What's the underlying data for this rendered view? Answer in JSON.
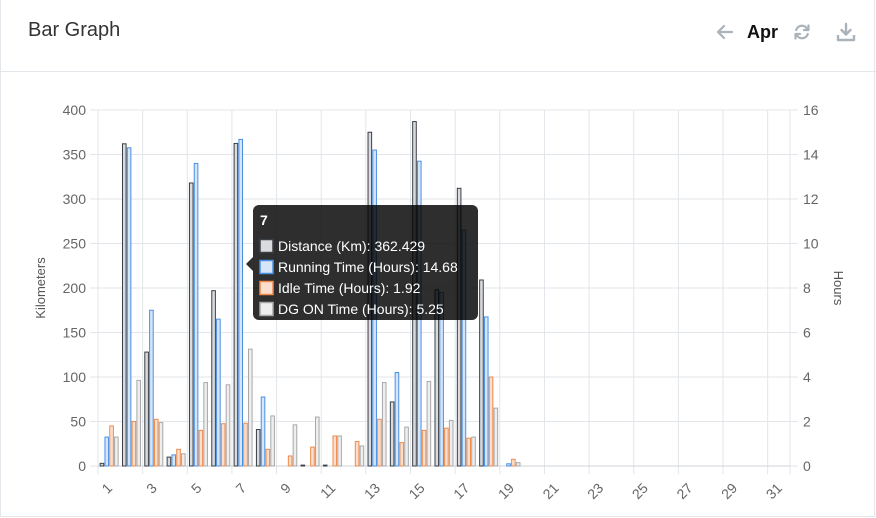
{
  "card": {
    "title": "Bar Graph",
    "month": "Apr",
    "icons": {
      "prev": "arrow-left-icon",
      "refresh": "refresh-icon",
      "download": "download-icon"
    }
  },
  "chart_data": {
    "type": "bar",
    "categories": [
      "1",
      "2",
      "3",
      "4",
      "5",
      "6",
      "7",
      "8",
      "9",
      "10",
      "11",
      "12",
      "13",
      "14",
      "15",
      "16",
      "17",
      "18",
      "19",
      "20",
      "21",
      "22",
      "23",
      "24",
      "25",
      "26",
      "27",
      "28",
      "29",
      "30",
      "31"
    ],
    "x_tick_labels": [
      "1",
      "3",
      "5",
      "7",
      "9",
      "11",
      "13",
      "15",
      "17",
      "19",
      "21",
      "23",
      "25",
      "27",
      "29",
      "31"
    ],
    "y_left": {
      "label": "Kilometers",
      "range": [
        0,
        400
      ],
      "ticks": [
        0,
        50,
        100,
        150,
        200,
        250,
        300,
        350,
        400
      ]
    },
    "y_right": {
      "label": "Hours",
      "range": [
        0,
        16
      ],
      "ticks": [
        0,
        2,
        4,
        6,
        8,
        10,
        12,
        14,
        16
      ]
    },
    "series": [
      {
        "name": "Distance (Km)",
        "axis": "left",
        "color": "#3a3f47",
        "fill": "#d9dbde",
        "values": [
          3,
          362,
          128,
          10,
          318,
          197,
          362.429,
          41,
          0,
          1,
          1,
          0,
          375,
          72,
          387,
          198,
          312,
          209,
          0,
          0,
          0,
          0,
          0,
          0,
          0,
          0,
          0,
          0,
          0,
          0,
          0
        ]
      },
      {
        "name": "Running Time (Hours)",
        "axis": "right",
        "color": "#4a90e2",
        "fill": "#d6e6f8",
        "values": [
          1.3,
          14.3,
          7.0,
          0.5,
          13.6,
          6.6,
          14.68,
          3.1,
          0,
          0,
          0,
          0,
          14.2,
          4.2,
          13.7,
          7.8,
          10.6,
          6.7,
          0.1,
          0,
          0,
          0,
          0,
          0,
          0,
          0,
          0,
          0,
          0,
          0,
          0
        ]
      },
      {
        "name": "Idle Time (Hours)",
        "axis": "right",
        "color": "#f0894a",
        "fill": "#fbe0cf",
        "values": [
          1.8,
          2.0,
          2.1,
          0.75,
          1.6,
          1.9,
          1.92,
          0.75,
          0.45,
          0.85,
          1.35,
          1.1,
          2.1,
          1.05,
          1.6,
          1.7,
          1.25,
          4.0,
          0.3,
          0,
          0,
          0,
          0,
          0,
          0,
          0,
          0,
          0,
          0,
          0,
          0
        ]
      },
      {
        "name": "DG ON Time (Hours)",
        "axis": "right",
        "color": "#a8a8a8",
        "fill": "#eeeeee",
        "values": [
          1.3,
          3.85,
          1.95,
          0.55,
          3.75,
          3.65,
          5.25,
          2.25,
          1.85,
          2.2,
          1.35,
          0.9,
          3.75,
          1.75,
          3.8,
          2.05,
          1.3,
          2.6,
          0.15,
          0,
          0,
          0,
          0,
          0,
          0,
          0,
          0,
          0,
          0,
          0,
          0
        ]
      }
    ],
    "tooltip": {
      "title": "7",
      "items": [
        {
          "label": "Distance (Km): 362.429",
          "series": 0
        },
        {
          "label": "Running Time (Hours): 14.68",
          "series": 1
        },
        {
          "label": "Idle Time (Hours): 1.92",
          "series": 2
        },
        {
          "label": "DG ON Time (Hours): 5.25",
          "series": 3
        }
      ]
    },
    "grid": true
  }
}
